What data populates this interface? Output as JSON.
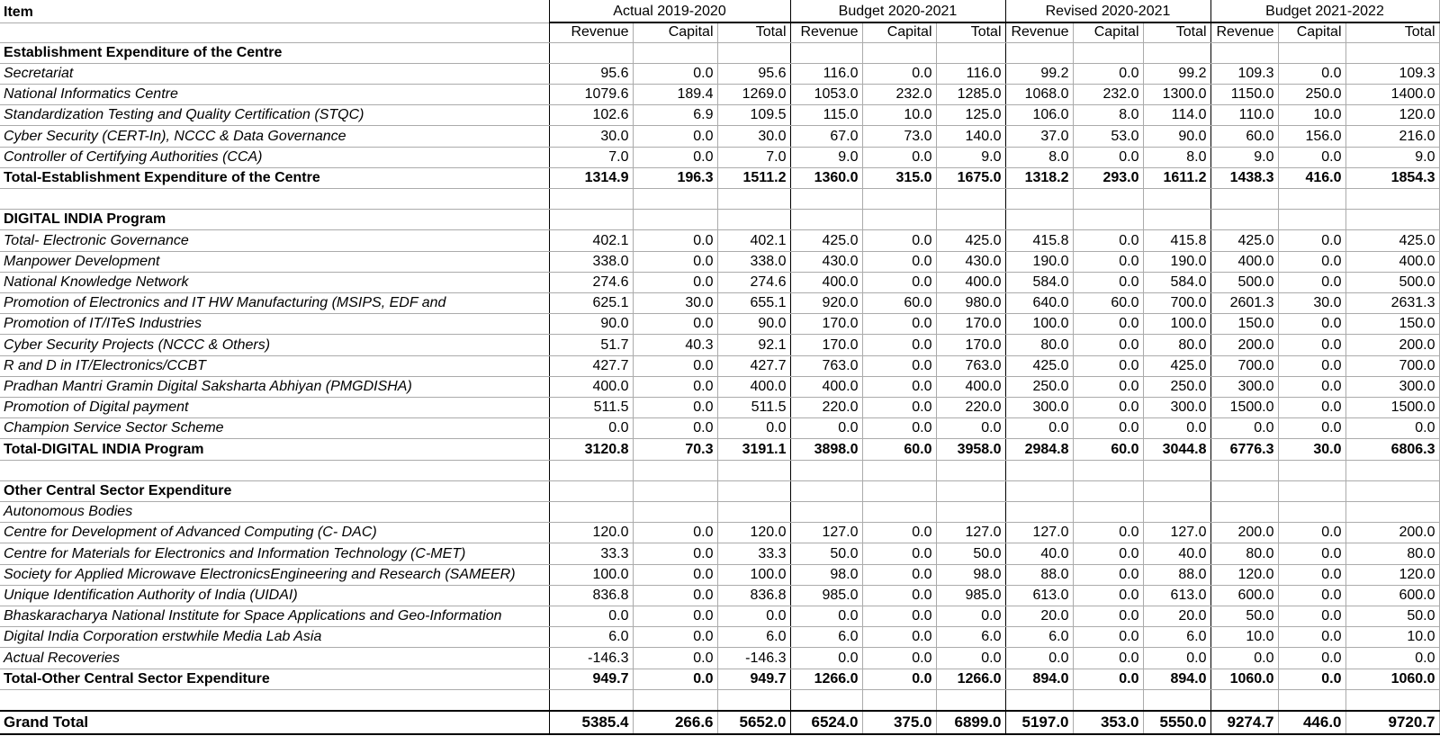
{
  "table": {
    "item_header": "Item",
    "column_groups": [
      "Actual 2019-2020",
      "Budget 2020-2021",
      "Revised 2020-2021",
      "Budget 2021-2022"
    ],
    "sub_headers": [
      "Revenue",
      "Capital",
      "Total"
    ],
    "rows": [
      {
        "label": "Establishment Expenditure of the Centre",
        "style": "section",
        "values": []
      },
      {
        "label": "Secretariat",
        "style": "item",
        "values": [
          95.6,
          0.0,
          95.6,
          116.0,
          0.0,
          116.0,
          99.2,
          0.0,
          99.2,
          109.3,
          0.0,
          109.3
        ]
      },
      {
        "label": "National Informatics Centre",
        "style": "item",
        "values": [
          1079.6,
          189.4,
          1269.0,
          1053.0,
          232.0,
          1285.0,
          1068.0,
          232.0,
          1300.0,
          1150.0,
          250.0,
          1400.0
        ]
      },
      {
        "label": "Standardization Testing and Quality Certification (STQC)",
        "style": "item",
        "values": [
          102.6,
          6.9,
          109.5,
          115.0,
          10.0,
          125.0,
          106.0,
          8.0,
          114.0,
          110.0,
          10.0,
          120.0
        ]
      },
      {
        "label": "Cyber Security (CERT-In), NCCC & Data Governance",
        "style": "item",
        "values": [
          30.0,
          0.0,
          30.0,
          67.0,
          73.0,
          140.0,
          37.0,
          53.0,
          90.0,
          60.0,
          156.0,
          216.0
        ]
      },
      {
        "label": "Controller of Certifying Authorities (CCA)",
        "style": "item",
        "values": [
          7.0,
          0.0,
          7.0,
          9.0,
          0.0,
          9.0,
          8.0,
          0.0,
          8.0,
          9.0,
          0.0,
          9.0
        ]
      },
      {
        "label": "Total-Establishment Expenditure of the Centre",
        "style": "total",
        "values": [
          1314.9,
          196.3,
          1511.2,
          1360.0,
          315.0,
          1675.0,
          1318.2,
          293.0,
          1611.2,
          1438.3,
          416.0,
          1854.3
        ]
      },
      {
        "label": "",
        "style": "blank",
        "values": []
      },
      {
        "label": "DIGITAL INDIA Program",
        "style": "section",
        "values": []
      },
      {
        "label": "Total- Electronic Governance",
        "style": "item",
        "values": [
          402.1,
          0.0,
          402.1,
          425.0,
          0.0,
          425.0,
          415.8,
          0.0,
          415.8,
          425.0,
          0.0,
          425.0
        ]
      },
      {
        "label": "Manpower Development",
        "style": "item",
        "values": [
          338.0,
          0.0,
          338.0,
          430.0,
          0.0,
          430.0,
          190.0,
          0.0,
          190.0,
          400.0,
          0.0,
          400.0
        ]
      },
      {
        "label": "National Knowledge Network",
        "style": "item",
        "values": [
          274.6,
          0.0,
          274.6,
          400.0,
          0.0,
          400.0,
          584.0,
          0.0,
          584.0,
          500.0,
          0.0,
          500.0
        ]
      },
      {
        "label": "Promotion of Electronics and IT HW Manufacturing (MSIPS, EDF and",
        "style": "item",
        "values": [
          625.1,
          30.0,
          655.1,
          920.0,
          60.0,
          980.0,
          640.0,
          60.0,
          700.0,
          2601.3,
          30.0,
          2631.3
        ]
      },
      {
        "label": "Promotion of IT/ITeS Industries",
        "style": "item",
        "values": [
          90.0,
          0.0,
          90.0,
          170.0,
          0.0,
          170.0,
          100.0,
          0.0,
          100.0,
          150.0,
          0.0,
          150.0
        ]
      },
      {
        "label": "Cyber Security Projects (NCCC & Others)",
        "style": "item",
        "values": [
          51.7,
          40.3,
          92.1,
          170.0,
          0.0,
          170.0,
          80.0,
          0.0,
          80.0,
          200.0,
          0.0,
          200.0
        ]
      },
      {
        "label": "R and D in IT/Electronics/CCBT",
        "style": "item",
        "values": [
          427.7,
          0.0,
          427.7,
          763.0,
          0.0,
          763.0,
          425.0,
          0.0,
          425.0,
          700.0,
          0.0,
          700.0
        ]
      },
      {
        "label": "Pradhan Mantri Gramin Digital Saksharta Abhiyan (PMGDISHA)",
        "style": "item",
        "values": [
          400.0,
          0.0,
          400.0,
          400.0,
          0.0,
          400.0,
          250.0,
          0.0,
          250.0,
          300.0,
          0.0,
          300.0
        ]
      },
      {
        "label": "Promotion of Digital payment",
        "style": "item",
        "values": [
          511.5,
          0.0,
          511.5,
          220.0,
          0.0,
          220.0,
          300.0,
          0.0,
          300.0,
          1500.0,
          0.0,
          1500.0
        ]
      },
      {
        "label": "Champion Service Sector Scheme",
        "style": "item",
        "values": [
          0.0,
          0.0,
          0.0,
          0.0,
          0.0,
          0.0,
          0.0,
          0.0,
          0.0,
          0.0,
          0.0,
          0.0
        ]
      },
      {
        "label": "Total-DIGITAL INDIA Program",
        "style": "total",
        "values": [
          3120.8,
          70.3,
          3191.1,
          3898.0,
          60.0,
          3958.0,
          2984.8,
          60.0,
          3044.8,
          6776.3,
          30.0,
          6806.3
        ]
      },
      {
        "label": "",
        "style": "blank",
        "values": []
      },
      {
        "label": "Other Central Sector Expenditure",
        "style": "section",
        "values": []
      },
      {
        "label": "Autonomous Bodies",
        "style": "item",
        "values": []
      },
      {
        "label": "Centre for Development of Advanced Computing (C- DAC)",
        "style": "item",
        "values": [
          120.0,
          0.0,
          120.0,
          127.0,
          0.0,
          127.0,
          127.0,
          0.0,
          127.0,
          200.0,
          0.0,
          200.0
        ]
      },
      {
        "label": "Centre for Materials for Electronics and Information Technology (C-MET)",
        "style": "item",
        "values": [
          33.3,
          0.0,
          33.3,
          50.0,
          0.0,
          50.0,
          40.0,
          0.0,
          40.0,
          80.0,
          0.0,
          80.0
        ]
      },
      {
        "label": "Society for Applied Microwave ElectronicsEngineering and Research (SAMEER)",
        "style": "item",
        "values": [
          100.0,
          0.0,
          100.0,
          98.0,
          0.0,
          98.0,
          88.0,
          0.0,
          88.0,
          120.0,
          0.0,
          120.0
        ]
      },
      {
        "label": "Unique Identification Authority of India (UIDAI)",
        "style": "item",
        "values": [
          836.8,
          0.0,
          836.8,
          985.0,
          0.0,
          985.0,
          613.0,
          0.0,
          613.0,
          600.0,
          0.0,
          600.0
        ]
      },
      {
        "label": "Bhaskaracharya National Institute for Space Applications and Geo-Information",
        "style": "item",
        "values": [
          0.0,
          0.0,
          0.0,
          0.0,
          0.0,
          0.0,
          20.0,
          0.0,
          20.0,
          50.0,
          0.0,
          50.0
        ]
      },
      {
        "label": "Digital India Corporation erstwhile Media Lab Asia",
        "style": "item",
        "values": [
          6.0,
          0.0,
          6.0,
          6.0,
          0.0,
          6.0,
          6.0,
          0.0,
          6.0,
          10.0,
          0.0,
          10.0
        ]
      },
      {
        "label": "Actual Recoveries",
        "style": "item",
        "values": [
          -146.3,
          0.0,
          -146.3,
          0.0,
          0.0,
          0.0,
          0.0,
          0.0,
          0.0,
          0.0,
          0.0,
          0.0
        ]
      },
      {
        "label": "Total-Other Central Sector Expenditure",
        "style": "total",
        "values": [
          949.7,
          0.0,
          949.7,
          1266.0,
          0.0,
          1266.0,
          894.0,
          0.0,
          894.0,
          1060.0,
          0.0,
          1060.0
        ]
      },
      {
        "label": "",
        "style": "blank",
        "values": []
      },
      {
        "label": "Grand Total",
        "style": "grand",
        "values": [
          5385.4,
          266.6,
          5652.0,
          6524.0,
          375.0,
          6899.0,
          5197.0,
          353.0,
          5550.0,
          9274.7,
          446.0,
          9720.7
        ]
      }
    ]
  }
}
